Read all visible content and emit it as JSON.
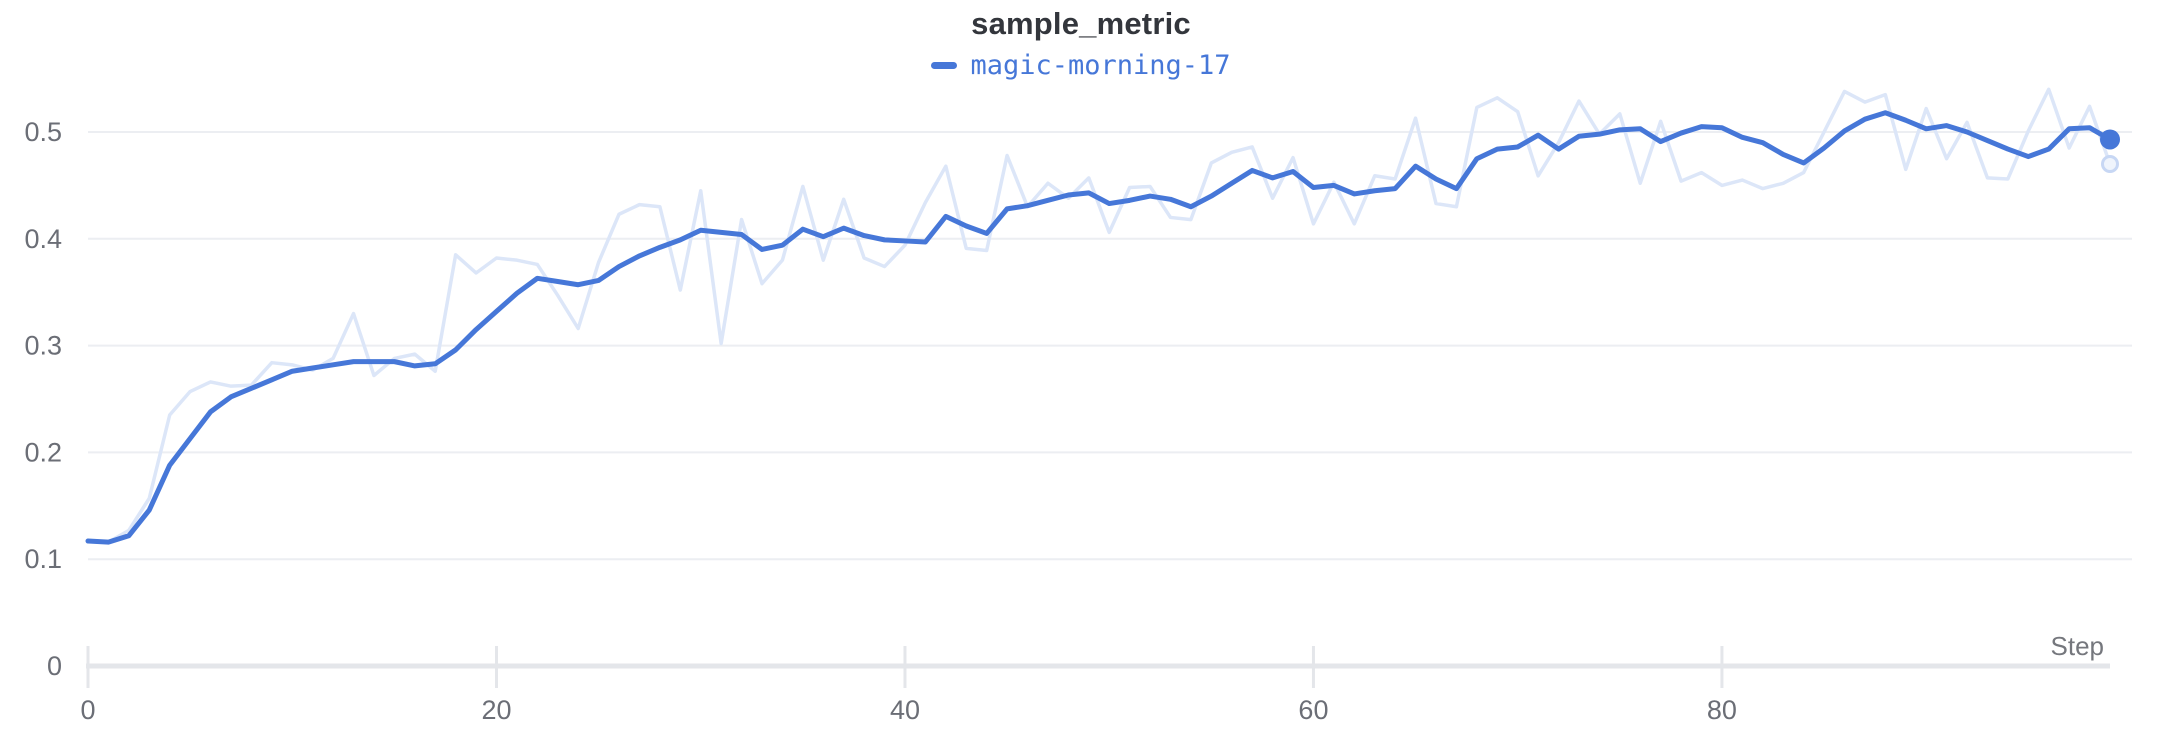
{
  "chart_data": {
    "type": "line",
    "title": "sample_metric",
    "xlabel": "Step",
    "ylabel": "",
    "xlim": [
      0,
      99
    ],
    "ylim": [
      0,
      0.545
    ],
    "grid": "horizontal",
    "legend_position": "top-center",
    "x_tick_values": [
      0,
      20,
      40,
      60,
      80
    ],
    "x_tick_labels": [
      "0",
      "20",
      "40",
      "60",
      "80"
    ],
    "y_tick_values": [
      0,
      0.1,
      0.2,
      0.3,
      0.4,
      0.5
    ],
    "y_tick_labels": [
      "0",
      "0.1",
      "0.2",
      "0.3",
      "0.4",
      "0.5"
    ],
    "legend": [
      {
        "name": "magic-morning-17",
        "color": "#4677d8"
      }
    ],
    "x": [
      0,
      1,
      2,
      3,
      4,
      5,
      6,
      7,
      8,
      9,
      10,
      11,
      12,
      13,
      14,
      15,
      16,
      17,
      18,
      19,
      20,
      21,
      22,
      23,
      24,
      25,
      26,
      27,
      28,
      29,
      30,
      31,
      32,
      33,
      34,
      35,
      36,
      37,
      38,
      39,
      40,
      41,
      42,
      43,
      44,
      45,
      46,
      47,
      48,
      49,
      50,
      51,
      52,
      53,
      54,
      55,
      56,
      57,
      58,
      59,
      60,
      61,
      62,
      63,
      64,
      65,
      66,
      67,
      68,
      69,
      70,
      71,
      72,
      73,
      74,
      75,
      76,
      77,
      78,
      79,
      80,
      81,
      82,
      83,
      84,
      85,
      86,
      87,
      88,
      89,
      90,
      91,
      92,
      93,
      94,
      95,
      96,
      97,
      98,
      99
    ],
    "series": [
      {
        "name": "magic-morning-17",
        "role": "raw",
        "color": "#dce6f8",
        "values": [
          0.117,
          0.116,
          0.127,
          0.157,
          0.235,
          0.257,
          0.266,
          0.262,
          0.263,
          0.284,
          0.282,
          0.277,
          0.288,
          0.33,
          0.272,
          0.288,
          0.292,
          0.276,
          0.385,
          0.368,
          0.382,
          0.38,
          0.376,
          0.347,
          0.316,
          0.378,
          0.423,
          0.432,
          0.43,
          0.352,
          0.445,
          0.302,
          0.418,
          0.358,
          0.38,
          0.449,
          0.38,
          0.437,
          0.382,
          0.374,
          0.394,
          0.434,
          0.468,
          0.391,
          0.389,
          0.478,
          0.43,
          0.452,
          0.438,
          0.457,
          0.406,
          0.448,
          0.449,
          0.42,
          0.418,
          0.471,
          0.481,
          0.486,
          0.438,
          0.476,
          0.414,
          0.453,
          0.414,
          0.459,
          0.456,
          0.513,
          0.433,
          0.43,
          0.523,
          0.532,
          0.519,
          0.459,
          0.49,
          0.529,
          0.498,
          0.517,
          0.452,
          0.51,
          0.454,
          0.462,
          0.45,
          0.455,
          0.447,
          0.452,
          0.462,
          0.5,
          0.538,
          0.528,
          0.535,
          0.465,
          0.522,
          0.475,
          0.509,
          0.457,
          0.456,
          0.501,
          0.54,
          0.485,
          0.524,
          0.47
        ]
      },
      {
        "name": "magic-morning-17",
        "role": "smoothed",
        "color": "#4677d8",
        "values": [
          0.117,
          0.116,
          0.122,
          0.146,
          0.188,
          0.213,
          0.238,
          0.252,
          0.26,
          0.268,
          0.276,
          0.279,
          0.282,
          0.285,
          0.285,
          0.285,
          0.281,
          0.283,
          0.296,
          0.315,
          0.332,
          0.349,
          0.363,
          0.36,
          0.357,
          0.361,
          0.374,
          0.384,
          0.392,
          0.399,
          0.408,
          0.406,
          0.404,
          0.39,
          0.394,
          0.409,
          0.402,
          0.41,
          0.403,
          0.399,
          0.398,
          0.397,
          0.421,
          0.412,
          0.405,
          0.428,
          0.431,
          0.436,
          0.441,
          0.443,
          0.433,
          0.436,
          0.44,
          0.437,
          0.43,
          0.44,
          0.452,
          0.464,
          0.457,
          0.463,
          0.448,
          0.45,
          0.442,
          0.445,
          0.447,
          0.468,
          0.456,
          0.447,
          0.475,
          0.484,
          0.486,
          0.497,
          0.484,
          0.496,
          0.498,
          0.502,
          0.503,
          0.491,
          0.499,
          0.505,
          0.504,
          0.495,
          0.49,
          0.479,
          0.471,
          0.485,
          0.501,
          0.512,
          0.518,
          0.511,
          0.503,
          0.506,
          0.5,
          0.492,
          0.484,
          0.477,
          0.484,
          0.503,
          0.504,
          0.493
        ]
      }
    ],
    "colors": {
      "accent": "#4677d8",
      "raw_line": "#dce6f8",
      "endpoint_ring_stroke": "#c7d7f4",
      "endpoint_ring_fill": "#eff4fc",
      "gridline": "#eceef2",
      "axis_line": "#e4e6ea",
      "tick_mark": "#e4e6ea",
      "tick_text": "#6b6e76",
      "step_text": "#75777d",
      "title_text": "#33363c"
    }
  }
}
